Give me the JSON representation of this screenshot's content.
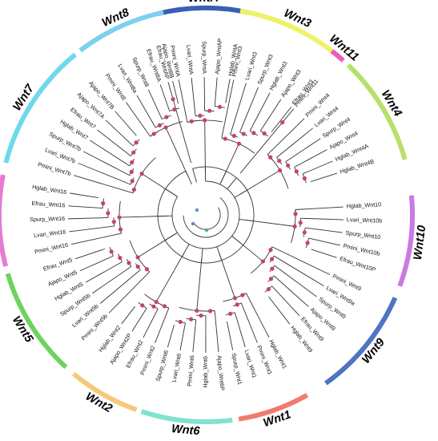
{
  "families": [
    {
      "name": "WntA",
      "color": "#3b5fb5",
      "tips": [
        "Pmini_WntA",
        "Lvari_WntA",
        "Spurp_WntA",
        "Ajapo_WntAP",
        "Hglab_WntA"
      ]
    },
    {
      "name": "Wnt3",
      "color": "#eef26a",
      "tips": [
        "Pmini_Wnt3",
        "Lvari_Wnt3",
        "Spurp_Wnt3",
        "Hglab_Wnt3",
        "Ajapo_Wnt3",
        "Efrau_Wnt3"
      ]
    },
    {
      "name": "Wnt11",
      "color": "#e85dc0",
      "tips": [
        "Pmini_Wnt11"
      ]
    },
    {
      "name": "Wnt4",
      "color": "#b8e06a",
      "tips": [
        "Pmini_Wnt4",
        "Lvari_Wnt4",
        "Spurp_Wnt4",
        "Ajapo_Wnt4",
        "Hglab_Wnt4A",
        "Hglab_Wnt4B"
      ]
    },
    {
      "name": "Wnt10",
      "color": "#c87be0",
      "tips": [
        "Hglab_Wnt10",
        "Lvari_Wnt10b",
        "Spurp_Wnt10",
        "Pmini_Wnt10b",
        "Efrau_Wnt10P"
      ]
    },
    {
      "name": "Wnt9",
      "color": "#4e74c2",
      "tips": [
        "Pmini_Wnt9",
        "Lvari_Wnt9a",
        "Spurp_Wnt9",
        "Ajapo_Wnt9",
        "Efrau_Wnt9",
        "Hglab_Wnt9"
      ]
    },
    {
      "name": "Wnt1",
      "color": "#f07b6e",
      "tips": [
        "Hglab_Wnt1",
        "Pmini_Wnt1",
        "Lvari_Wnt1",
        "Spurp_Wnt1"
      ]
    },
    {
      "name": "Wnt6",
      "color": "#7fe3cf",
      "tips": [
        "Ajapo_Wnt6P",
        "Hglab_Wnt6",
        "Pmini_Wnt6",
        "Lvari_Wnt6",
        "Spurp_Wnt6"
      ]
    },
    {
      "name": "Wnt2",
      "color": "#f5c97a",
      "tips": [
        "Pmini_Wnt2",
        "Efrau_Wnt2",
        "Ajapo_Wnt2P",
        "Hglab_Wnt2"
      ]
    },
    {
      "name": "Wnt5",
      "color": "#6ed35e",
      "tips": [
        "Pmini_Wnt5b",
        "Lvari_Wnt5b",
        "Spurp_Wnt5b",
        "Hglab_Wnt5",
        "Ajapo_Wnt5",
        "Efrau_Wnt5"
      ]
    },
    {
      "name": "Wnt16",
      "color": "#e87ad2",
      "tips": [
        "Pmini_Wnt16",
        "Lvari_Wnt16",
        "Spurp_Wnt16",
        "Efrau_Wnt16",
        "Hglab_Wnt16"
      ]
    },
    {
      "name": "Wnt7",
      "color": "#6fd8ec",
      "tips": [
        "Pmini_Wnt7b",
        "Lvari_Wnt7b",
        "Spurp_Wnt7b",
        "Hglab_Wnt7",
        "Efrau_Wnt7",
        "Ajapo_Wnt7A",
        "Ajapo_Wnt7B"
      ]
    },
    {
      "name": "Wnt8",
      "color": "#7ed0ee",
      "tips": [
        "Pmini_Wnt8",
        "Lvari_Wnt8a",
        "Spurp_Wnt8",
        "Efrau_Wnt8A",
        "Ajapo_Wnt8B"
      ]
    },
    {
      "name": "",
      "color": "#3b5fb5",
      "tips": [
        "Efrau_WntAP"
      ]
    }
  ]
}
